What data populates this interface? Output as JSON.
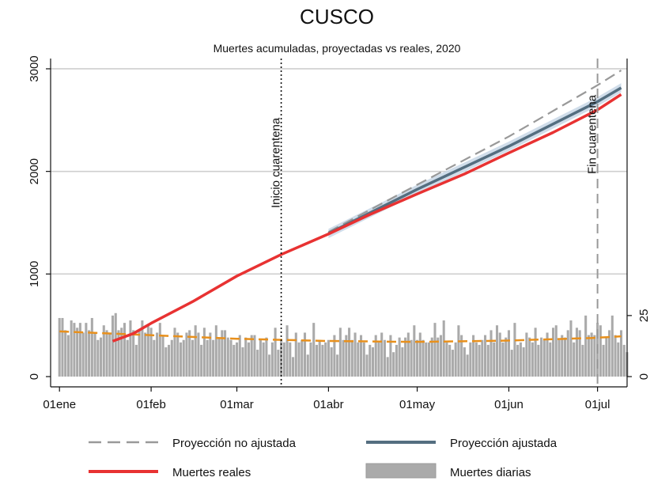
{
  "chart_data": {
    "type": "line",
    "title": "CUSCO",
    "subtitle": "Muertes acumuladas, proyectadas vs reales, 2020",
    "x_axis": {
      "range": [
        -3,
        192
      ],
      "ticks": [
        {
          "day": 0,
          "label": "01ene"
        },
        {
          "day": 31,
          "label": "01feb"
        },
        {
          "day": 60,
          "label": "01mar"
        },
        {
          "day": 91,
          "label": "01abr"
        },
        {
          "day": 121,
          "label": "01may"
        },
        {
          "day": 152,
          "label": "01jun"
        },
        {
          "day": 182,
          "label": "01jul"
        }
      ]
    },
    "y_left": {
      "range": [
        -100,
        3100
      ],
      "ticks": [
        "0",
        "1000",
        "2000",
        "3000"
      ],
      "grid": true
    },
    "y_right": {
      "range": [
        0,
        60
      ],
      "ticks": [
        "0",
        "25"
      ]
    },
    "annotations": [
      {
        "label": "Inicio cuarentena",
        "day": 75,
        "style": "dotted"
      },
      {
        "label": "Fin cuarentena",
        "day": 182,
        "style": "dashed"
      }
    ],
    "series": [
      {
        "name": "Proyección no ajustada",
        "color": "#999999",
        "style": "dashed",
        "points": [
          [
            91,
            1410
          ],
          [
            121,
            1870
          ],
          [
            152,
            2340
          ],
          [
            182,
            2840
          ],
          [
            190,
            2985
          ]
        ]
      },
      {
        "name": "Proyección ajustada",
        "color": "#546e80",
        "style": "solid",
        "band_width": 45,
        "points": [
          [
            91,
            1395
          ],
          [
            121,
            1825
          ],
          [
            152,
            2245
          ],
          [
            182,
            2680
          ],
          [
            190,
            2815
          ]
        ]
      },
      {
        "name": "Muertes reales",
        "color": "#e83232",
        "style": "solid",
        "points": [
          [
            18,
            345
          ],
          [
            25,
            420
          ],
          [
            31,
            520
          ],
          [
            45,
            730
          ],
          [
            60,
            980
          ],
          [
            75,
            1190
          ],
          [
            91,
            1390
          ],
          [
            105,
            1580
          ],
          [
            121,
            1780
          ],
          [
            137,
            1975
          ],
          [
            152,
            2180
          ],
          [
            167,
            2380
          ],
          [
            182,
            2600
          ],
          [
            190,
            2750
          ]
        ]
      },
      {
        "name": "Muertes diarias",
        "color": "#aaaaaa",
        "style": "bar",
        "axis": "right",
        "daily": [
          24,
          24,
          19,
          17,
          23,
          22,
          20,
          22,
          18,
          22,
          19,
          24,
          18,
          15,
          16,
          21,
          19,
          18,
          25,
          26,
          19,
          20,
          22,
          15,
          23,
          19,
          13,
          19,
          23,
          18,
          21,
          20,
          15,
          18,
          22,
          17,
          12,
          13,
          15,
          20,
          18,
          14,
          15,
          18,
          19,
          15,
          21,
          18,
          13,
          20,
          15,
          18,
          15,
          21,
          16,
          19,
          19,
          16,
          15,
          13,
          14,
          17,
          12,
          16,
          14,
          17,
          17,
          11,
          15,
          14,
          16,
          9,
          14,
          20,
          11,
          15,
          14,
          21,
          14,
          8,
          18,
          14,
          15,
          18,
          9,
          14,
          22,
          13,
          15,
          13,
          14,
          15,
          12,
          17,
          9,
          20,
          15,
          17,
          20,
          15,
          18,
          14,
          17,
          14,
          9,
          13,
          12,
          17,
          14,
          18,
          15,
          8,
          17,
          10,
          13,
          16,
          12,
          16,
          18,
          15,
          21,
          15,
          18,
          15,
          14,
          14,
          16,
          22,
          16,
          17,
          23,
          14,
          13,
          11,
          14,
          21,
          17,
          12,
          9,
          14,
          17,
          14,
          13,
          15,
          17,
          13,
          19,
          14,
          21,
          18,
          14,
          16,
          19,
          11,
          22,
          13,
          14,
          12,
          18,
          16,
          14,
          20,
          13,
          16,
          15,
          18,
          14,
          20,
          21,
          15,
          17,
          16,
          19,
          23,
          14,
          20,
          19,
          13,
          25,
          17,
          18,
          17,
          22,
          21,
          13,
          16,
          19,
          25,
          17,
          14,
          19,
          13,
          10
        ],
        "trend": [
          [
            0,
            18.5
          ],
          [
            30,
            17.0
          ],
          [
            60,
            15.5
          ],
          [
            90,
            14.6
          ],
          [
            120,
            14.2
          ],
          [
            150,
            14.7
          ],
          [
            180,
            15.8
          ],
          [
            190,
            16.5
          ]
        ],
        "trend_color": "#e8901c"
      }
    ],
    "legend": {
      "placement": "bottom",
      "entries": [
        {
          "label": "Proyección no ajustada"
        },
        {
          "label": "Proyección ajustada"
        },
        {
          "label": "Muertes reales"
        },
        {
          "label": "Muertes diarias"
        }
      ]
    }
  }
}
